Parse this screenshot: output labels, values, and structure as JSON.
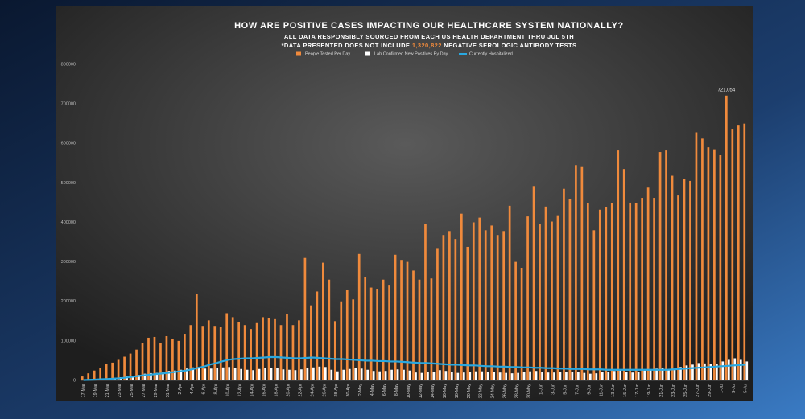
{
  "chart_data": {
    "type": "bar_line",
    "title": "HOW ARE POSITIVE  CASES IMPACTING OUR HEALTHCARE SYSTEM NATIONALLY?",
    "subtitle": "ALL DATA RESPONSIBLY SOURCED FROM EACH US HEALTH DEPARTMENT THRU JUL 5TH",
    "note_prefix": "*DATA PRESENTED DOES NOT INCLUDE",
    "note_number": "1,320,822",
    "note_suffix": "NEGATIVE SEROLOGIC ANTIBODY TESTS",
    "categories": [
      "17-Mar",
      null,
      "19-Mar",
      null,
      "21-Mar",
      null,
      "23-Mar",
      null,
      "25-Mar",
      null,
      "27-Mar",
      null,
      "29-Mar",
      null,
      "31-Mar",
      null,
      "2-Apr",
      null,
      "4-Apr",
      null,
      "6-Apr",
      null,
      "8-Apr",
      null,
      "10-Apr",
      null,
      "12-Apr",
      null,
      "14-Apr",
      null,
      "16-Apr",
      null,
      "18-Apr",
      null,
      "20-Apr",
      null,
      "22-Apr",
      null,
      "24-Apr",
      null,
      "26-Apr",
      null,
      "28-Apr",
      null,
      "30-Apr",
      null,
      "2-May",
      null,
      "4-May",
      null,
      "6-May",
      null,
      "8-May",
      null,
      "10-May",
      null,
      "12-May",
      null,
      "14-May",
      null,
      "16-May",
      null,
      "18-May",
      null,
      "20-May",
      null,
      "22-May",
      null,
      "24-May",
      null,
      "26-May",
      null,
      "28-May",
      null,
      "30-May",
      null,
      "1-Jun",
      null,
      "3-Jun",
      null,
      "5-Jun",
      null,
      "7-Jun",
      null,
      "9-Jun",
      null,
      "11-Jun",
      null,
      "13-Jun",
      null,
      "15-Jun",
      null,
      "17-Jun",
      null,
      "19-Jun",
      null,
      "21-Jun",
      null,
      "23-Jun",
      null,
      "25-Jun",
      null,
      "27-Jun",
      null,
      "29-Jun",
      null,
      "1-Jul",
      null,
      "3-Jul",
      null,
      "5-Jul"
    ],
    "series": [
      {
        "name": "People Tested Per Day",
        "color": "#f08a3c",
        "kind": "bar",
        "values": [
          10000,
          18000,
          25000,
          32000,
          42000,
          45000,
          52000,
          60000,
          68000,
          78000,
          95000,
          108000,
          110000,
          95000,
          112000,
          105000,
          100000,
          118000,
          140000,
          218000,
          138000,
          152000,
          138000,
          135000,
          170000,
          160000,
          148000,
          140000,
          130000,
          145000,
          160000,
          158000,
          155000,
          140000,
          168000,
          140000,
          152000,
          310000,
          190000,
          225000,
          298000,
          255000,
          150000,
          200000,
          230000,
          205000,
          320000,
          262000,
          235000,
          232000,
          255000,
          240000,
          318000,
          305000,
          300000,
          278000,
          255000,
          395000,
          258000,
          335000,
          368000,
          378000,
          358000,
          422000,
          338000,
          400000,
          412000,
          380000,
          392000,
          368000,
          378000,
          442000,
          300000,
          285000,
          415000,
          492000,
          395000,
          440000,
          402000,
          418000,
          485000,
          460000,
          545000,
          540000,
          448000,
          380000,
          432000,
          438000,
          448000,
          582000,
          535000,
          450000,
          448000,
          462000,
          488000,
          462000,
          578000,
          582000,
          518000,
          468000,
          510000,
          505000,
          628000,
          612000,
          590000,
          585000,
          570000,
          721054,
          635000,
          645000,
          650000
        ],
        "value_labels": [
          null,
          null,
          null,
          null,
          null,
          null,
          null,
          null,
          null,
          null,
          null,
          null,
          null,
          null,
          null,
          null,
          null,
          null,
          null,
          null,
          null,
          null,
          null,
          null,
          null,
          null,
          null,
          null,
          null,
          null,
          null,
          null,
          null,
          null,
          null,
          null,
          null,
          null,
          null,
          null,
          null,
          null,
          null,
          null,
          null,
          null,
          null,
          null,
          null,
          null,
          null,
          null,
          null,
          null,
          null,
          null,
          null,
          null,
          null,
          null,
          null,
          null,
          null,
          null,
          null,
          null,
          null,
          null,
          null,
          null,
          null,
          null,
          null,
          null,
          null,
          null,
          null,
          null,
          null,
          null,
          null,
          null,
          null,
          null,
          null,
          null,
          null,
          null,
          null,
          null,
          null,
          null,
          null,
          null,
          null,
          null,
          null,
          null,
          null,
          null,
          null,
          null,
          null,
          null,
          null,
          null,
          null,
          "721,054",
          null,
          null,
          null
        ]
      },
      {
        "name": "Lab Confirmed New Positives By Day",
        "color": "#ffffff",
        "kind": "bar",
        "values": [
          1000,
          1500,
          2500,
          3500,
          5000,
          6500,
          8000,
          10000,
          12000,
          14000,
          17000,
          18500,
          19000,
          20000,
          24000,
          25000,
          27000,
          30000,
          33000,
          34000,
          30000,
          30000,
          31000,
          33000,
          34000,
          32000,
          29000,
          27000,
          26000,
          29000,
          31000,
          32000,
          31000,
          28000,
          27000,
          26000,
          28000,
          31000,
          33000,
          35000,
          34000,
          27000,
          23000,
          27000,
          29000,
          31000,
          30000,
          27000,
          24000,
          23000,
          24000,
          27000,
          28000,
          27000,
          25000,
          20000,
          19000,
          22000,
          21000,
          26000,
          24000,
          22000,
          19000,
          20000,
          21000,
          23000,
          23000,
          22000,
          21000,
          20000,
          19000,
          18000,
          19000,
          21000,
          23000,
          24000,
          22000,
          20000,
          20000,
          21000,
          22000,
          22000,
          21000,
          19000,
          17000,
          18000,
          21000,
          22000,
          24000,
          25000,
          21000,
          20000,
          22000,
          25000,
          27000,
          30000,
          32000,
          28000,
          28000,
          34000,
          38000,
          40000,
          44000,
          43000,
          41000,
          42000,
          48000,
          52000,
          56000,
          52000,
          48000
        ]
      },
      {
        "name": "Currently Hospitalized",
        "color": "#29a8e0",
        "kind": "line",
        "values": [
          1000,
          1500,
          2000,
          3000,
          3500,
          4500,
          5500,
          7000,
          9000,
          11000,
          13000,
          14500,
          16000,
          17500,
          19000,
          21000,
          23000,
          25000,
          28000,
          32000,
          35000,
          40000,
          44000,
          48000,
          52000,
          54000,
          55000,
          56000,
          56000,
          57000,
          58000,
          59000,
          59000,
          58000,
          57000,
          56000,
          56000,
          57000,
          58000,
          57000,
          56000,
          55000,
          54000,
          54000,
          53000,
          52000,
          51000,
          50000,
          50000,
          49000,
          49000,
          48000,
          48000,
          47000,
          46000,
          45000,
          44000,
          44000,
          43000,
          42000,
          41000,
          40000,
          40000,
          39000,
          38000,
          38000,
          37000,
          36000,
          36000,
          35000,
          35000,
          34000,
          34000,
          33000,
          33000,
          32000,
          32000,
          31000,
          31000,
          30000,
          30000,
          29000,
          29000,
          29000,
          28000,
          28000,
          28000,
          27000,
          27000,
          27000,
          27000,
          27000,
          27000,
          27000,
          27000,
          27000,
          27000,
          27000,
          28000,
          29000,
          30000,
          31000,
          32000,
          33000,
          34000,
          35000,
          36000,
          37000,
          38000,
          39000,
          40000
        ]
      }
    ],
    "ylim": [
      0,
      800000
    ],
    "yticks": [
      0,
      100000,
      200000,
      300000,
      400000,
      500000,
      600000,
      700000,
      800000
    ],
    "grid": false
  }
}
